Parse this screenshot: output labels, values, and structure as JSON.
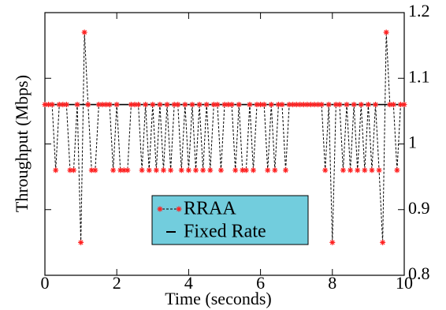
{
  "chart_data": {
    "type": "line",
    "xlabel": "Time (seconds)",
    "ylabel": "Throughput (Mbps)",
    "xlim": [
      0,
      10
    ],
    "xticks": [
      0,
      2,
      4,
      6,
      8,
      10
    ],
    "ylim": [
      0.8,
      1.2
    ],
    "yticks": [
      0.8,
      0.9,
      1,
      1.1,
      1.2
    ],
    "y_axis_side": "right",
    "legend_position": "lower center",
    "legend_color": "#72cddd",
    "series": [
      {
        "name": "RRAA",
        "color": "#000000",
        "marker_color": "#ff2020",
        "marker": "asterisk",
        "line_style": "dashed",
        "x": [
          0,
          0.1,
          0.2,
          0.3,
          0.4,
          0.5,
          0.6,
          0.7,
          0.8,
          0.9,
          1,
          1.1,
          1.2,
          1.3,
          1.4,
          1.5,
          1.6,
          1.7,
          1.8,
          1.9,
          2,
          2.1,
          2.2,
          2.3,
          2.4,
          2.5,
          2.6,
          2.7,
          2.8,
          2.9,
          3,
          3.1,
          3.2,
          3.3,
          3.4,
          3.5,
          3.6,
          3.7,
          3.8,
          3.9,
          4,
          4.1,
          4.2,
          4.3,
          4.4,
          4.5,
          4.6,
          4.7,
          4.8,
          4.9,
          5,
          5.1,
          5.2,
          5.3,
          5.4,
          5.5,
          5.6,
          5.7,
          5.8,
          5.9,
          6,
          6.1,
          6.2,
          6.3,
          6.4,
          6.5,
          6.6,
          6.7,
          6.8,
          6.9,
          7,
          7.1,
          7.2,
          7.3,
          7.4,
          7.5,
          7.6,
          7.7,
          7.8,
          7.9,
          8,
          8.1,
          8.2,
          8.3,
          8.4,
          8.5,
          8.6,
          8.7,
          8.8,
          8.9,
          9,
          9.1,
          9.2,
          9.3,
          9.4,
          9.5,
          9.6,
          9.7,
          9.8,
          9.9,
          10
        ],
        "values": [
          1.06,
          1.06,
          1.06,
          0.96,
          1.06,
          1.06,
          1.06,
          0.96,
          0.96,
          1.06,
          0.85,
          1.17,
          1.06,
          0.96,
          0.96,
          1.06,
          1.06,
          1.06,
          1.06,
          0.96,
          1.06,
          0.96,
          0.96,
          0.96,
          1.06,
          1.06,
          1.06,
          0.96,
          1.06,
          0.96,
          1.06,
          0.96,
          1.06,
          0.96,
          1.06,
          0.96,
          1.06,
          1.06,
          0.96,
          1.06,
          0.96,
          1.06,
          0.96,
          1.06,
          0.96,
          1.06,
          0.96,
          1.06,
          1.06,
          0.96,
          1.06,
          1.06,
          1.06,
          0.96,
          1.06,
          0.96,
          0.96,
          1.06,
          0.96,
          1.06,
          1.06,
          1.06,
          0.96,
          1.06,
          0.96,
          1.06,
          1.06,
          0.96,
          1.06,
          1.06,
          1.06,
          1.06,
          1.06,
          1.06,
          1.06,
          1.06,
          1.06,
          1.06,
          0.96,
          1.06,
          0.85,
          1.06,
          1.06,
          0.96,
          1.06,
          0.96,
          1.06,
          0.96,
          1.06,
          0.96,
          1.06,
          0.96,
          1.06,
          0.96,
          0.85,
          1.17,
          1.06,
          1.06,
          0.96,
          1.06,
          1.06
        ]
      },
      {
        "name": "Fixed Rate",
        "color": "#000000",
        "line_style": "solid",
        "x": [
          0,
          10
        ],
        "values": [
          1.06,
          1.06
        ]
      }
    ]
  }
}
